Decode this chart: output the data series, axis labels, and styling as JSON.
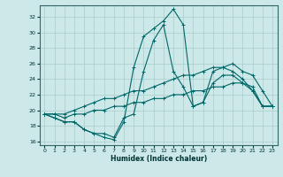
{
  "xlabel": "Humidex (Indice chaleur)",
  "ylabel": "",
  "xlim": [
    -0.5,
    23.5
  ],
  "ylim": [
    15.5,
    33.5
  ],
  "xticks": [
    0,
    1,
    2,
    3,
    4,
    5,
    6,
    7,
    8,
    9,
    10,
    11,
    12,
    13,
    14,
    15,
    16,
    17,
    18,
    19,
    20,
    21,
    22,
    23
  ],
  "yticks": [
    16,
    18,
    20,
    22,
    24,
    26,
    28,
    30,
    32
  ],
  "background_color": "#cce8e8",
  "grid_color": "#aacccc",
  "line_color": "#006666",
  "lines": [
    {
      "x": [
        0,
        1,
        2,
        3,
        4,
        5,
        6,
        7,
        8,
        9,
        10,
        11,
        12,
        13,
        14,
        15,
        16,
        17,
        18,
        19,
        20,
        21,
        22,
        23
      ],
      "y": [
        19.5,
        19.0,
        18.5,
        18.5,
        17.5,
        17.0,
        16.5,
        16.2,
        18.5,
        25.5,
        29.5,
        30.5,
        31.5,
        33.0,
        31.0,
        20.5,
        21.0,
        25.0,
        25.5,
        25.0,
        24.0,
        22.5,
        20.5,
        20.5
      ]
    },
    {
      "x": [
        0,
        1,
        2,
        3,
        4,
        5,
        6,
        7,
        8,
        9,
        10,
        11,
        12,
        13,
        14,
        15,
        16,
        17,
        18,
        19,
        20,
        21,
        22,
        23
      ],
      "y": [
        19.5,
        19.0,
        18.5,
        18.5,
        17.5,
        17.0,
        17.0,
        16.5,
        19.0,
        19.5,
        25.0,
        29.0,
        31.0,
        25.0,
        23.0,
        20.5,
        21.0,
        23.5,
        24.5,
        24.5,
        23.5,
        22.5,
        20.5,
        20.5
      ]
    },
    {
      "x": [
        0,
        1,
        2,
        3,
        4,
        5,
        6,
        7,
        8,
        9,
        10,
        11,
        12,
        13,
        14,
        15,
        16,
        17,
        18,
        19,
        20,
        21,
        22,
        23
      ],
      "y": [
        19.5,
        19.5,
        19.5,
        20.0,
        20.5,
        21.0,
        21.5,
        21.5,
        22.0,
        22.5,
        22.5,
        23.0,
        23.5,
        24.0,
        24.5,
        24.5,
        25.0,
        25.5,
        25.5,
        26.0,
        25.0,
        24.5,
        22.5,
        20.5
      ]
    },
    {
      "x": [
        0,
        1,
        2,
        3,
        4,
        5,
        6,
        7,
        8,
        9,
        10,
        11,
        12,
        13,
        14,
        15,
        16,
        17,
        18,
        19,
        20,
        21,
        22,
        23
      ],
      "y": [
        19.5,
        19.5,
        19.0,
        19.5,
        19.5,
        20.0,
        20.0,
        20.5,
        20.5,
        21.0,
        21.0,
        21.5,
        21.5,
        22.0,
        22.0,
        22.5,
        22.5,
        23.0,
        23.0,
        23.5,
        23.5,
        23.0,
        20.5,
        20.5
      ]
    }
  ]
}
